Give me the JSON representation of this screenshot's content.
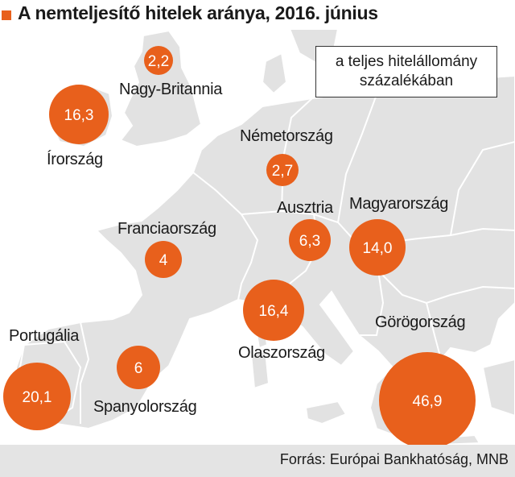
{
  "title": "A nemteljesítő hitelek aránya, 2016. június",
  "legend_text_line1": "a teljes hitelállomány",
  "legend_text_line2": "százalékában",
  "source": "Forrás: Európai Bankhatóság, MNB",
  "colors": {
    "bubble": "#e8601c",
    "land": "#e2e2e2",
    "border": "#ffffff",
    "footer": "#e4e4e4"
  },
  "countries": [
    {
      "name": "Nagy-Britannia",
      "value": "2,2"
    },
    {
      "name": "Írország",
      "value": "16,3"
    },
    {
      "name": "Németország",
      "value": "2,7"
    },
    {
      "name": "Franciaország",
      "value": "4"
    },
    {
      "name": "Ausztria",
      "value": "6,3"
    },
    {
      "name": "Magyarország",
      "value": "14,0"
    },
    {
      "name": "Olaszország",
      "value": "16,4"
    },
    {
      "name": "Portugália",
      "value": "20,1"
    },
    {
      "name": "Spanyolország",
      "value": "6"
    },
    {
      "name": "Görögország",
      "value": "46,9"
    }
  ]
}
